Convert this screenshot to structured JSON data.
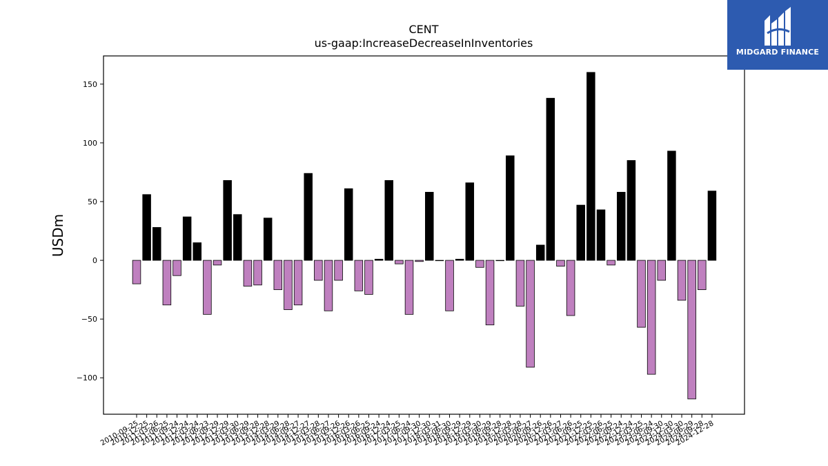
{
  "chart_data": {
    "type": "bar",
    "title": "CENT",
    "subtitle": "us-gaap:IncreaseDecreaseInInventories",
    "xlabel": "",
    "ylabel": "USDm",
    "ylim": [
      -131,
      174
    ],
    "yticks": [
      -100,
      -50,
      0,
      50,
      100,
      150
    ],
    "grid": false,
    "colors": {
      "positive": "#000000",
      "negative": "#bf80bf",
      "edge": "#000000"
    },
    "categories": [
      "2010-09-25",
      "2010-12-25",
      "2011-03-26",
      "2011-06-25",
      "2011-09-24",
      "2011-12-24",
      "2012-03-24",
      "2012-06-23",
      "2012-09-29",
      "2012-12-29",
      "2013-03-30",
      "2013-06-29",
      "2013-09-28",
      "2013-12-28",
      "2014-03-29",
      "2014-06-28",
      "2014-09-27",
      "2014-12-27",
      "2015-03-28",
      "2015-06-27",
      "2015-09-26",
      "2015-12-26",
      "2016-03-26",
      "2016-06-25",
      "2016-09-24",
      "2016-12-24",
      "2017-03-25",
      "2017-06-24",
      "2017-09-30",
      "2017-12-30",
      "2018-03-31",
      "2018-06-30",
      "2018-09-29",
      "2018-12-29",
      "2019-03-30",
      "2019-06-29",
      "2019-09-28",
      "2019-12-28",
      "2020-03-28",
      "2020-06-27",
      "2020-09-26",
      "2020-12-26",
      "2021-03-27",
      "2021-06-26",
      "2021-09-25",
      "2021-12-25",
      "2022-03-26",
      "2022-06-25",
      "2022-09-24",
      "2022-12-24",
      "2023-03-25",
      "2023-06-24",
      "2023-09-30",
      "2023-12-30",
      "2024-03-30",
      "2024-06-29",
      "2024-09-28",
      "2024-12-28"
    ],
    "values": [
      -20,
      56,
      28,
      -38,
      -13,
      37,
      15,
      -46,
      -4,
      68,
      39,
      -22,
      -21,
      36,
      -25,
      -42,
      -38,
      74,
      -17,
      -43,
      -17,
      61,
      -26,
      -29,
      1,
      68,
      -3,
      -46,
      -1,
      58,
      0,
      -43,
      1,
      66,
      -6,
      -55,
      0,
      89,
      -39,
      -91,
      13,
      138,
      -5,
      -47,
      47,
      160,
      43,
      -4,
      58,
      85,
      -57,
      -97,
      -17,
      93,
      -34,
      -118,
      -25,
      59
    ]
  },
  "logo": {
    "name": "MIDGARD FINANCE"
  }
}
